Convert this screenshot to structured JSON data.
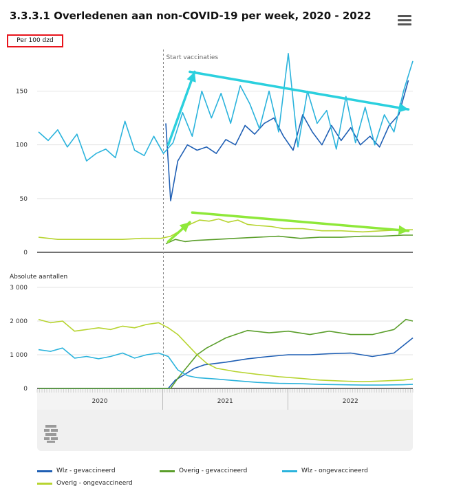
{
  "title": "3.3.3.1 Overledenen aan non-COVID-19 per week, 2020 - 2022",
  "menu_icon": "hamburger-menu-icon",
  "logo_icon": "cbs-logo-icon",
  "chart_data": [
    {
      "type": "line",
      "name": "top-panel",
      "ylabel": "Per 100 dzd",
      "ylim": [
        0,
        190
      ],
      "yticks": [
        "0",
        "50",
        "100",
        "150"
      ],
      "annotation": "Start vaccinaties",
      "x_domain": [
        "2020-01-01",
        "2022-12-31"
      ],
      "series": [
        {
          "name": "Wlz - gevaccineerd",
          "color": "#1f5fb4",
          "x": [
            "2021-01-10",
            "2021-01-24",
            "2021-02-14",
            "2021-03-14",
            "2021-04-11",
            "2021-05-09",
            "2021-06-06",
            "2021-07-04",
            "2021-08-01",
            "2021-08-29",
            "2021-09-26",
            "2021-10-24",
            "2021-11-21",
            "2021-12-19",
            "2022-01-16",
            "2022-02-13",
            "2022-03-13",
            "2022-04-10",
            "2022-05-08",
            "2022-06-05",
            "2022-07-03",
            "2022-07-31",
            "2022-08-28",
            "2022-09-25",
            "2022-10-23",
            "2022-11-20",
            "2022-12-18"
          ],
          "values": [
            120,
            48,
            85,
            100,
            95,
            98,
            92,
            105,
            100,
            118,
            110,
            120,
            125,
            108,
            95,
            128,
            112,
            100,
            118,
            104,
            116,
            100,
            108,
            98,
            118,
            128,
            160
          ]
        },
        {
          "name": "Wlz - ongevaccineerd",
          "color": "#2ab3dc",
          "x": [
            "2020-01-05",
            "2020-02-02",
            "2020-03-01",
            "2020-03-29",
            "2020-04-26",
            "2020-05-24",
            "2020-06-21",
            "2020-07-19",
            "2020-08-16",
            "2020-09-13",
            "2020-10-11",
            "2020-11-08",
            "2020-12-06",
            "2021-01-03",
            "2021-01-31",
            "2021-02-28",
            "2021-03-28",
            "2021-04-25",
            "2021-05-23",
            "2021-06-20",
            "2021-07-18",
            "2021-08-15",
            "2021-09-12",
            "2021-10-10",
            "2021-11-07",
            "2021-12-05",
            "2022-01-02",
            "2022-01-30",
            "2022-02-27",
            "2022-03-27",
            "2022-04-24",
            "2022-05-22",
            "2022-06-19",
            "2022-07-17",
            "2022-08-14",
            "2022-09-11",
            "2022-10-09",
            "2022-11-06",
            "2022-12-04",
            "2022-12-31"
          ],
          "values": [
            112,
            104,
            114,
            98,
            110,
            85,
            92,
            96,
            88,
            122,
            95,
            90,
            108,
            92,
            102,
            130,
            108,
            150,
            125,
            148,
            120,
            155,
            138,
            115,
            150,
            112,
            185,
            98,
            150,
            120,
            132,
            96,
            145,
            102,
            135,
            100,
            128,
            112,
            150,
            178
          ]
        }
      ]
    },
    {
      "type": "line",
      "name": "top-panel-lower",
      "series": [
        {
          "name": "Overig - gevaccineerd",
          "color": "#5a9e2a",
          "x": [
            "2021-01-10",
            "2021-02-07",
            "2021-03-07",
            "2021-04-04",
            "2021-06-06",
            "2021-08-01",
            "2021-10-03",
            "2021-12-05",
            "2022-02-06",
            "2022-04-03",
            "2022-06-05",
            "2022-08-07",
            "2022-10-02",
            "2022-12-04",
            "2022-12-31"
          ],
          "values": [
            8,
            12,
            10,
            11,
            12,
            13,
            14,
            15,
            13,
            14,
            14,
            15,
            15,
            16,
            16
          ]
        },
        {
          "name": "Overig - ongevaccineerd",
          "color": "#b7d430",
          "x": [
            "2020-01-05",
            "2020-03-01",
            "2020-05-03",
            "2020-07-05",
            "2020-09-06",
            "2020-11-01",
            "2020-12-27",
            "2021-01-24",
            "2021-02-21",
            "2021-03-21",
            "2021-04-18",
            "2021-05-16",
            "2021-06-13",
            "2021-07-11",
            "2021-08-08",
            "2021-09-05",
            "2021-10-03",
            "2021-11-14",
            "2021-12-19",
            "2022-02-13",
            "2022-04-10",
            "2022-06-05",
            "2022-08-07",
            "2022-10-02",
            "2022-12-04",
            "2022-12-31"
          ],
          "values": [
            14,
            12,
            12,
            12,
            12,
            13,
            13,
            15,
            20,
            26,
            30,
            29,
            31,
            28,
            30,
            26,
            25,
            24,
            22,
            22,
            20,
            20,
            19,
            20,
            21,
            21
          ]
        }
      ]
    },
    {
      "type": "line",
      "name": "bottom-panel",
      "ylabel": "Absolute aantallen",
      "ylim": [
        0,
        3000
      ],
      "yticks": [
        "0",
        "1 000",
        "2 000",
        "3 000"
      ],
      "xticks": [
        "2020",
        "2021",
        "2022"
      ],
      "x_domain": [
        "2020-01-01",
        "2022-12-31"
      ],
      "series": [
        {
          "name": "Wlz - gevaccineerd",
          "color": "#1f5fb4",
          "x": [
            "2020-01-05",
            "2021-01-17",
            "2021-02-07",
            "2021-03-07",
            "2021-04-04",
            "2021-05-02",
            "2021-07-04",
            "2021-09-05",
            "2021-11-07",
            "2022-01-02",
            "2022-03-06",
            "2022-05-01",
            "2022-07-03",
            "2022-09-04",
            "2022-11-06",
            "2022-12-31"
          ],
          "values": [
            0,
            0,
            250,
            420,
            600,
            700,
            780,
            880,
            950,
            1000,
            1000,
            1030,
            1050,
            950,
            1050,
            1500
          ]
        },
        {
          "name": "Overig - gevaccineerd",
          "color": "#5a9e2a",
          "x": [
            "2020-01-05",
            "2021-01-24",
            "2021-02-14",
            "2021-03-14",
            "2021-04-11",
            "2021-05-09",
            "2021-06-06",
            "2021-07-04",
            "2021-08-01",
            "2021-09-05",
            "2021-11-07",
            "2022-01-02",
            "2022-03-06",
            "2022-05-01",
            "2022-07-03",
            "2022-09-04",
            "2022-11-06",
            "2022-12-11",
            "2022-12-31"
          ],
          "values": [
            0,
            0,
            300,
            650,
            1000,
            1200,
            1350,
            1500,
            1600,
            1720,
            1650,
            1700,
            1600,
            1700,
            1600,
            1600,
            1750,
            2050,
            2000
          ]
        },
        {
          "name": "Wlz - ongevaccineerd",
          "color": "#2ab3dc",
          "x": [
            "2020-01-05",
            "2020-02-09",
            "2020-03-15",
            "2020-04-19",
            "2020-05-24",
            "2020-06-28",
            "2020-08-02",
            "2020-09-06",
            "2020-10-11",
            "2020-11-15",
            "2020-12-20",
            "2021-01-17",
            "2021-02-14",
            "2021-03-14",
            "2021-04-11",
            "2021-06-06",
            "2021-08-01",
            "2021-10-03",
            "2021-12-05",
            "2022-02-06",
            "2022-04-03",
            "2022-06-05",
            "2022-08-07",
            "2022-10-02",
            "2022-12-04",
            "2022-12-31"
          ],
          "values": [
            1150,
            1100,
            1200,
            900,
            950,
            880,
            950,
            1050,
            900,
            1000,
            1050,
            950,
            550,
            380,
            320,
            280,
            230,
            180,
            150,
            140,
            120,
            110,
            100,
            100,
            110,
            120
          ]
        },
        {
          "name": "Overig - ongevaccineerd",
          "color": "#b7d430",
          "x": [
            "2020-01-05",
            "2020-02-09",
            "2020-03-15",
            "2020-04-19",
            "2020-05-24",
            "2020-06-28",
            "2020-08-02",
            "2020-09-06",
            "2020-10-11",
            "2020-11-15",
            "2020-12-20",
            "2021-01-17",
            "2021-02-14",
            "2021-03-14",
            "2021-04-11",
            "2021-05-09",
            "2021-06-06",
            "2021-08-01",
            "2021-10-03",
            "2021-12-05",
            "2022-02-06",
            "2022-04-03",
            "2022-06-05",
            "2022-08-07",
            "2022-10-02",
            "2022-12-04",
            "2022-12-31"
          ],
          "values": [
            2050,
            1950,
            2000,
            1700,
            1750,
            1800,
            1750,
            1850,
            1800,
            1900,
            1950,
            1800,
            1600,
            1300,
            1000,
            750,
            600,
            500,
            420,
            350,
            300,
            250,
            220,
            200,
            220,
            250,
            280
          ]
        }
      ]
    }
  ],
  "legend": [
    {
      "label": "Wlz - gevaccineerd",
      "color": "#1f5fb4"
    },
    {
      "label": "Overig - gevaccineerd",
      "color": "#5a9e2a"
    },
    {
      "label": "Wlz - ongevaccineerd",
      "color": "#2ab3dc"
    },
    {
      "label": "Overig - ongevaccineerd",
      "color": "#b7d430"
    }
  ],
  "arrows": [
    {
      "color": "#2bd0de",
      "points": [
        [
          "2021-01-17",
          100
        ],
        [
          "2021-04-04",
          168
        ]
      ]
    },
    {
      "color": "#2bd0de",
      "points": [
        [
          "2021-03-21",
          168
        ],
        [
          "2022-12-18",
          133
        ]
      ]
    },
    {
      "color": "#8fe83a",
      "points": [
        [
          "2021-01-17",
          10
        ],
        [
          "2021-03-21",
          28
        ]
      ]
    },
    {
      "color": "#8fe83a",
      "points": [
        [
          "2021-03-28",
          37
        ],
        [
          "2022-12-18",
          20
        ]
      ]
    }
  ]
}
